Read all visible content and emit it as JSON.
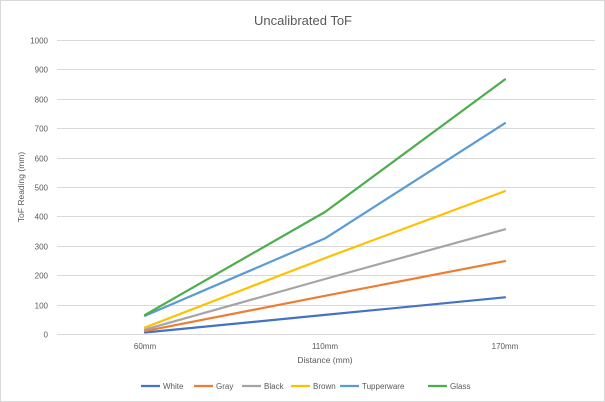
{
  "chart_data": {
    "type": "line",
    "title": "Uncalibrated ToF",
    "xlabel": "Distance (mm)",
    "ylabel": "ToF Reading (mm)",
    "categories": [
      "60mm",
      "110mm",
      "170mm"
    ],
    "ylim": [
      0,
      1000
    ],
    "yticks": [
      0,
      100,
      200,
      300,
      400,
      500,
      600,
      700,
      800,
      900,
      1000
    ],
    "grid": true,
    "legend_position": "bottom",
    "series": [
      {
        "name": "White",
        "color": "#4472c4",
        "values": [
          5,
          65,
          125
        ]
      },
      {
        "name": "Gray",
        "color": "#ed7d31",
        "values": [
          10,
          130,
          248
        ]
      },
      {
        "name": "Black",
        "color": "#a5a5a5",
        "values": [
          15,
          187,
          356
        ]
      },
      {
        "name": "Brown",
        "color": "#ffc000",
        "values": [
          22,
          258,
          486
        ]
      },
      {
        "name": "Tupperware",
        "color": "#5b9bd5",
        "values": [
          62,
          325,
          717
        ]
      },
      {
        "name": "Glass",
        "color": "#4cae4c",
        "values": [
          65,
          415,
          866
        ]
      }
    ]
  }
}
